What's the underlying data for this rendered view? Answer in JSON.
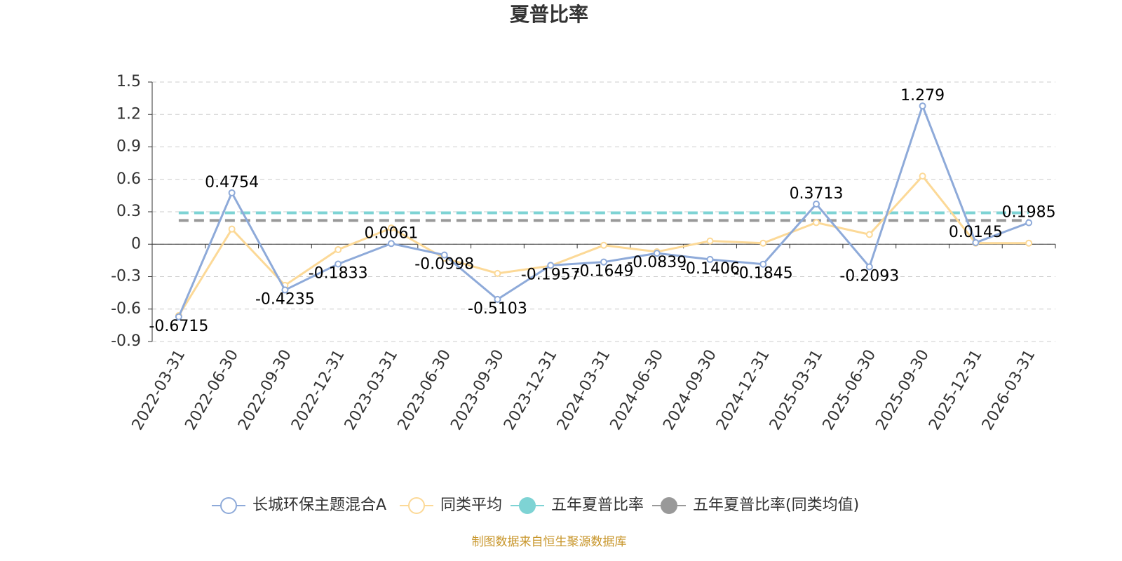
{
  "chart_data": {
    "type": "line",
    "title": "夏普比率",
    "source": "制图数据来自恒生聚源数据库",
    "categories": [
      "2022-03-31",
      "2022-06-30",
      "2022-09-30",
      "2022-12-31",
      "2023-03-31",
      "2023-06-30",
      "2023-09-30",
      "2023-12-31",
      "2024-03-31",
      "2024-06-30",
      "2024-09-30",
      "2024-12-31",
      "2025-03-31",
      "2025-06-30",
      "2025-09-30",
      "2025-12-31",
      "2026-03-31"
    ],
    "series": [
      {
        "name": "长城环保主题混合A",
        "color": "#8eaad9",
        "line_style": "solid",
        "markers": true,
        "data_labels": true,
        "values": [
          -0.6715,
          0.4754,
          -0.4235,
          -0.1833,
          0.0061,
          -0.0998,
          -0.5103,
          -0.1957,
          -0.1649,
          -0.0839,
          -0.1406,
          -0.1845,
          0.3713,
          -0.2093,
          1.279,
          0.0145,
          0.1985
        ]
      },
      {
        "name": "同类平均",
        "color": "#fcd997",
        "line_style": "solid",
        "markers": true,
        "data_labels": false,
        "values": [
          -0.66,
          0.14,
          -0.38,
          -0.05,
          0.15,
          -0.13,
          -0.27,
          -0.2,
          -0.01,
          -0.07,
          0.03,
          0.01,
          0.2,
          0.09,
          0.63,
          0.01,
          0.01
        ]
      },
      {
        "name": "五年夏普比率",
        "color": "#7ed3d4",
        "line_style": "dashed",
        "markers": false,
        "data_labels": false,
        "values": [
          0.29,
          0.29,
          0.29,
          0.29,
          0.29,
          0.29,
          0.29,
          0.29,
          0.29,
          0.29,
          0.29,
          0.29,
          0.29,
          0.29,
          0.29,
          0.29,
          0.29
        ]
      },
      {
        "name": "五年夏普比率(同类均值)",
        "color": "#999999",
        "line_style": "dashed",
        "markers": false,
        "data_labels": false,
        "values": [
          0.22,
          0.22,
          0.22,
          0.22,
          0.22,
          0.22,
          0.22,
          0.22,
          0.22,
          0.22,
          0.22,
          0.22,
          0.22,
          0.22,
          0.22,
          0.22,
          0.22
        ]
      }
    ],
    "ylim": [
      -0.9,
      1.5
    ],
    "yticks": [
      -0.9,
      -0.6,
      -0.3,
      0,
      0.3,
      0.6,
      0.9,
      1.2,
      1.5
    ],
    "grid": true
  }
}
